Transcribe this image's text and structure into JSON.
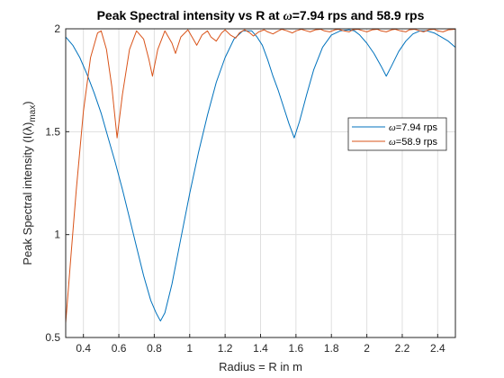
{
  "chart_data": {
    "type": "line",
    "title_prefix": "Peak Spectral intensity vs R at ",
    "title_omega_symbol": "ω",
    "title_suffix": "=7.94 rps and 58.9 rps",
    "xlabel": "Radius = R in m",
    "ylabel_main": "Peak Spectral intensity (I(λ)",
    "ylabel_sub": "max",
    "ylabel_end": ")",
    "xlim": [
      0.3,
      2.5
    ],
    "ylim": [
      0.5,
      2
    ],
    "xticks": [
      0.4,
      0.6,
      0.8,
      1,
      1.2,
      1.4,
      1.6,
      1.8,
      2,
      2.2,
      2.4
    ],
    "xtick_labels": [
      "0.4",
      "0.6",
      "0.8",
      "1",
      "1.2",
      "1.4",
      "1.6",
      "1.8",
      "2",
      "2.2",
      "2.4"
    ],
    "yticks": [
      0.5,
      1,
      1.5,
      2
    ],
    "ytick_labels": [
      "0.5",
      "1",
      "1.5",
      "2"
    ],
    "grid": true,
    "legend_position": "right",
    "series": [
      {
        "name": "ω=7.94 rps",
        "legend_symbol": "ω",
        "legend_text": "=7.94 rps",
        "color": "#0072BD",
        "x": [
          0.3,
          0.34,
          0.38,
          0.42,
          0.46,
          0.5,
          0.54,
          0.58,
          0.62,
          0.66,
          0.7,
          0.74,
          0.78,
          0.81,
          0.835,
          0.86,
          0.9,
          0.95,
          1.0,
          1.05,
          1.1,
          1.15,
          1.2,
          1.25,
          1.3,
          1.35,
          1.38,
          1.41,
          1.44,
          1.47,
          1.5,
          1.53,
          1.56,
          1.59,
          1.62,
          1.66,
          1.7,
          1.75,
          1.8,
          1.85,
          1.9,
          1.93,
          1.96,
          2.0,
          2.04,
          2.08,
          2.11,
          2.14,
          2.18,
          2.22,
          2.26,
          2.3,
          2.34,
          2.38,
          2.42,
          2.46,
          2.5
        ],
        "y": [
          1.96,
          1.92,
          1.86,
          1.78,
          1.69,
          1.59,
          1.47,
          1.35,
          1.22,
          1.08,
          0.94,
          0.8,
          0.68,
          0.62,
          0.58,
          0.62,
          0.76,
          0.98,
          1.2,
          1.4,
          1.58,
          1.74,
          1.86,
          1.95,
          1.99,
          1.99,
          1.96,
          1.92,
          1.85,
          1.77,
          1.7,
          1.62,
          1.54,
          1.47,
          1.55,
          1.68,
          1.8,
          1.91,
          1.97,
          1.99,
          1.995,
          1.99,
          1.97,
          1.93,
          1.88,
          1.82,
          1.77,
          1.82,
          1.89,
          1.94,
          1.975,
          1.99,
          1.99,
          1.98,
          1.96,
          1.94,
          1.91
        ]
      },
      {
        "name": "ω=58.9 rps",
        "legend_symbol": "ω",
        "legend_text": "=58.9 rps",
        "color": "#D95319",
        "x": [
          0.3,
          0.33,
          0.36,
          0.4,
          0.44,
          0.48,
          0.5,
          0.53,
          0.56,
          0.59,
          0.62,
          0.66,
          0.7,
          0.74,
          0.77,
          0.79,
          0.82,
          0.86,
          0.9,
          0.92,
          0.95,
          0.99,
          1.02,
          1.04,
          1.07,
          1.1,
          1.12,
          1.15,
          1.18,
          1.2,
          1.23,
          1.26,
          1.28,
          1.31,
          1.34,
          1.36,
          1.39,
          1.42,
          1.44,
          1.47,
          1.5,
          1.52,
          1.55,
          1.58,
          1.6,
          1.63,
          1.66,
          1.68,
          1.71,
          1.74,
          1.76,
          1.79,
          1.82,
          1.84,
          1.87,
          1.9,
          1.92,
          1.95,
          1.98,
          2.0,
          2.03,
          2.06,
          2.08,
          2.11,
          2.14,
          2.16,
          2.19,
          2.22,
          2.24,
          2.27,
          2.3,
          2.32,
          2.35,
          2.38,
          2.4,
          2.43,
          2.46,
          2.5
        ],
        "y": [
          0.57,
          0.9,
          1.22,
          1.6,
          1.86,
          1.98,
          1.99,
          1.9,
          1.72,
          1.47,
          1.68,
          1.9,
          1.99,
          1.95,
          1.85,
          1.77,
          1.9,
          1.99,
          1.93,
          1.88,
          1.96,
          1.995,
          1.95,
          1.92,
          1.97,
          1.99,
          1.96,
          1.94,
          1.98,
          1.995,
          1.97,
          1.955,
          1.98,
          1.995,
          1.98,
          1.965,
          1.985,
          1.995,
          1.985,
          1.975,
          1.99,
          1.998,
          1.99,
          1.98,
          1.99,
          1.998,
          1.99,
          1.985,
          1.995,
          1.998,
          1.99,
          1.985,
          1.995,
          1.998,
          1.99,
          1.985,
          1.995,
          1.998,
          1.99,
          1.985,
          1.995,
          1.998,
          1.99,
          1.985,
          1.995,
          1.998,
          1.99,
          1.985,
          1.995,
          1.998,
          1.99,
          1.985,
          1.995,
          1.998,
          1.99,
          1.985,
          1.995,
          1.998
        ]
      }
    ]
  }
}
